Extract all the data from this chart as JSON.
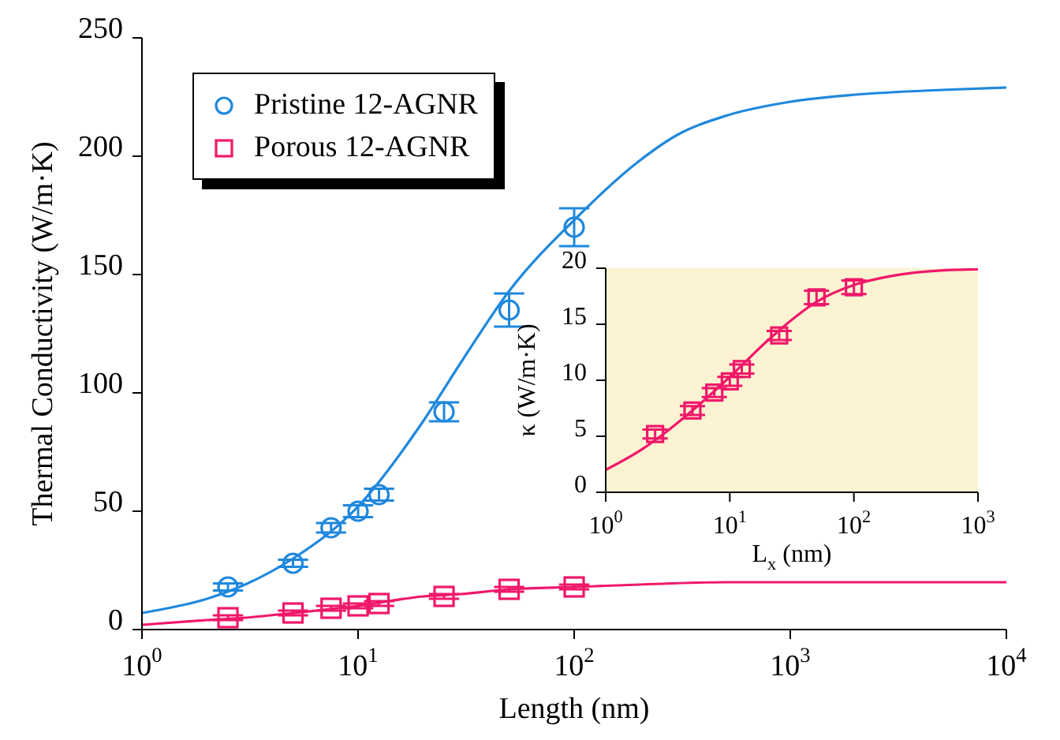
{
  "chart_data": [
    {
      "type": "scatter",
      "xlabel": "Length (nm)",
      "ylabel": "Thermal Conductivity (W/m·K)",
      "log": "x",
      "grid": false,
      "legend": "top left",
      "xlim": [
        1,
        10000
      ],
      "xticks": [
        {
          "value": 1,
          "label": "10$^{0}$"
        },
        {
          "value": 10,
          "label": "10$^{1}$"
        },
        {
          "value": 100,
          "label": "10$^{2}$"
        },
        {
          "value": 1000,
          "label": "10$^{3}$"
        },
        {
          "value": 10000,
          "label": "10$^{4}$"
        }
      ],
      "ylim": [
        0,
        250
      ],
      "yticks": [
        0,
        50,
        100,
        150,
        200,
        250
      ],
      "series": [
        {
          "name": "Pristine 12-AGNR",
          "type": "scatter",
          "marker": "circle",
          "color": "#1f88dd",
          "x": [
            2.5,
            5,
            7.5,
            10,
            12.5,
            25,
            50,
            100
          ],
          "values": [
            18,
            28,
            43,
            50,
            57,
            92,
            135,
            170
          ],
          "errors": [
            1.5,
            1.5,
            2,
            2.5,
            2.5,
            4,
            7,
            8
          ]
        },
        {
          "type": "line",
          "color": "#1f88dd",
          "x": [
            1,
            2,
            3,
            5,
            10,
            20,
            30,
            50,
            100,
            200,
            300,
            500,
            1000,
            2000,
            5000,
            10000
          ],
          "values": [
            7,
            13,
            19,
            30,
            52,
            88,
            113,
            143,
            173,
            198,
            209,
            217,
            223,
            226,
            228,
            229
          ]
        },
        {
          "name": "Porous 12-AGNR",
          "type": "scatter",
          "marker": "square",
          "color": "#f0186a",
          "x": [
            2.5,
            5,
            7.5,
            10,
            12.5,
            25,
            50,
            100
          ],
          "values": [
            5,
            7,
            9,
            10,
            11,
            14,
            17,
            18
          ],
          "errors": [
            1,
            1,
            1,
            1,
            1,
            1,
            1,
            1
          ]
        },
        {
          "type": "line",
          "color": "#f0186a",
          "x": [
            1,
            2,
            3,
            5,
            10,
            20,
            30,
            50,
            100,
            200,
            500,
            1000,
            10000
          ],
          "values": [
            2,
            4,
            5,
            7,
            10,
            14,
            15,
            17,
            18,
            19,
            20,
            20,
            20
          ]
        }
      ]
    },
    {
      "type": "scatter",
      "xlabel": "L$_{x}$ (nm)",
      "ylabel": "κ (W/m·K)",
      "log": "x",
      "grid": false,
      "xlim": [
        1,
        1000
      ],
      "xticks": [
        {
          "value": 1,
          "label": "10$^{0}$"
        },
        {
          "value": 10,
          "label": "10$^{1}$"
        },
        {
          "value": 100,
          "label": "10$^{2}$"
        },
        {
          "value": 1000,
          "label": "10$^{3}$"
        }
      ],
      "ylim": [
        0,
        20
      ],
      "yticks": [
        0,
        5,
        10,
        15,
        20
      ],
      "series": [
        {
          "type": "scatter",
          "marker": "square",
          "color": "#f0186a",
          "x": [
            2.5,
            5,
            7.5,
            10,
            12.5,
            25,
            50,
            100
          ],
          "values": [
            5.2,
            7.3,
            8.9,
            9.9,
            11,
            14,
            17.4,
            18.3
          ],
          "errors": [
            0.4,
            0.4,
            0.4,
            0.4,
            0.4,
            0.4,
            0.6,
            0.6
          ]
        },
        {
          "type": "line",
          "color": "#f0186a",
          "x": [
            1,
            2,
            3,
            5,
            10,
            20,
            30,
            50,
            100,
            200,
            500,
            1000
          ],
          "values": [
            2,
            3.9,
            5.3,
            7.3,
            10.3,
            13.5,
            15.2,
            17,
            18.5,
            19.3,
            19.8,
            19.9
          ]
        }
      ]
    }
  ]
}
